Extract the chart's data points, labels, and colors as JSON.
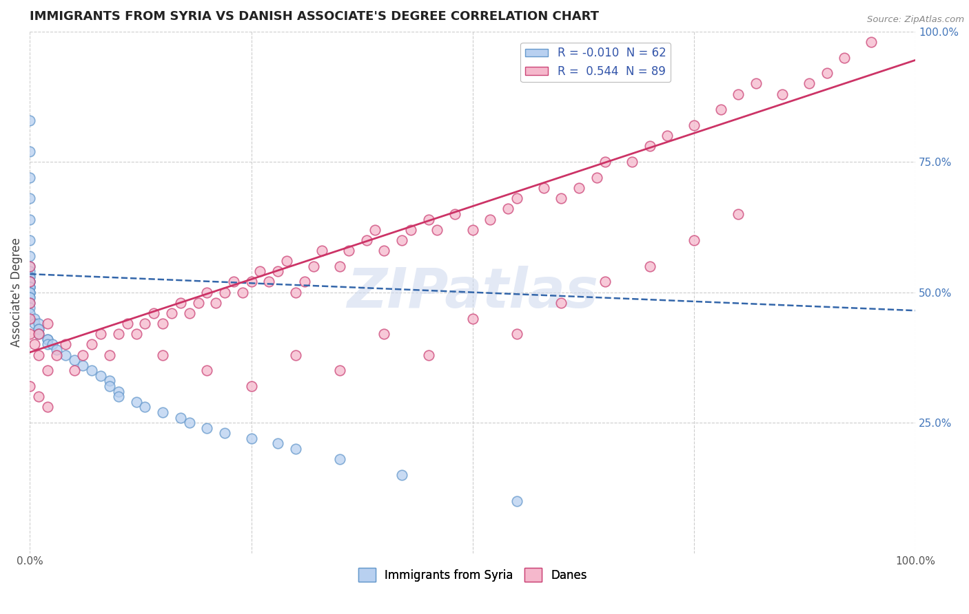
{
  "title": "IMMIGRANTS FROM SYRIA VS DANISH ASSOCIATE'S DEGREE CORRELATION CHART",
  "source": "Source: ZipAtlas.com",
  "ylabel": "Associate's Degree",
  "xmin": 0.0,
  "xmax": 1.0,
  "ymin": 0.0,
  "ymax": 1.0,
  "grid_color": "#cccccc",
  "background_color": "#ffffff",
  "legend_labels_bottom": [
    "Immigrants from Syria",
    "Danes"
  ],
  "blue_fill_color": "#b8d0f0",
  "pink_fill_color": "#f5b8cc",
  "blue_edge_color": "#6699cc",
  "pink_edge_color": "#cc4477",
  "blue_line_color": "#3366aa",
  "pink_line_color": "#cc3366",
  "watermark": "ZIPatlas",
  "legend_r_blue": "R = -0.010",
  "legend_n_blue": "N = 62",
  "legend_r_pink": "R =  0.544",
  "legend_n_pink": "N = 89",
  "blue_line_start_y": 0.535,
  "blue_line_end_y": 0.465,
  "pink_line_start_y": 0.385,
  "pink_line_end_y": 0.945,
  "blue_scatter_x": [
    0.0,
    0.0,
    0.0,
    0.0,
    0.0,
    0.0,
    0.0,
    0.0,
    0.0,
    0.0,
    0.0,
    0.0,
    0.0,
    0.0,
    0.0,
    0.0,
    0.0,
    0.0,
    0.0,
    0.0,
    0.0,
    0.0,
    0.0,
    0.0,
    0.0,
    0.0,
    0.0,
    0.0,
    0.0,
    0.005,
    0.005,
    0.01,
    0.01,
    0.01,
    0.01,
    0.02,
    0.02,
    0.02,
    0.025,
    0.03,
    0.04,
    0.05,
    0.06,
    0.07,
    0.08,
    0.09,
    0.09,
    0.1,
    0.1,
    0.12,
    0.13,
    0.15,
    0.17,
    0.18,
    0.2,
    0.22,
    0.25,
    0.28,
    0.3,
    0.35,
    0.42,
    0.55
  ],
  "blue_scatter_y": [
    0.83,
    0.77,
    0.72,
    0.68,
    0.64,
    0.6,
    0.57,
    0.55,
    0.54,
    0.53,
    0.53,
    0.52,
    0.52,
    0.52,
    0.52,
    0.52,
    0.51,
    0.51,
    0.51,
    0.51,
    0.5,
    0.5,
    0.5,
    0.5,
    0.49,
    0.49,
    0.48,
    0.47,
    0.46,
    0.45,
    0.44,
    0.44,
    0.43,
    0.43,
    0.42,
    0.41,
    0.41,
    0.4,
    0.4,
    0.39,
    0.38,
    0.37,
    0.36,
    0.35,
    0.34,
    0.33,
    0.32,
    0.31,
    0.3,
    0.29,
    0.28,
    0.27,
    0.26,
    0.25,
    0.24,
    0.23,
    0.22,
    0.21,
    0.2,
    0.18,
    0.15,
    0.1
  ],
  "pink_scatter_x": [
    0.0,
    0.0,
    0.0,
    0.0,
    0.0,
    0.005,
    0.01,
    0.01,
    0.02,
    0.02,
    0.03,
    0.04,
    0.05,
    0.06,
    0.07,
    0.08,
    0.09,
    0.1,
    0.11,
    0.12,
    0.13,
    0.14,
    0.15,
    0.16,
    0.17,
    0.18,
    0.19,
    0.2,
    0.21,
    0.22,
    0.23,
    0.24,
    0.25,
    0.26,
    0.27,
    0.28,
    0.29,
    0.3,
    0.31,
    0.32,
    0.33,
    0.35,
    0.36,
    0.38,
    0.39,
    0.4,
    0.42,
    0.43,
    0.45,
    0.46,
    0.48,
    0.5,
    0.52,
    0.54,
    0.55,
    0.58,
    0.6,
    0.62,
    0.64,
    0.65,
    0.68,
    0.7,
    0.72,
    0.75,
    0.78,
    0.8,
    0.82,
    0.85,
    0.88,
    0.9,
    0.92,
    0.95,
    0.0,
    0.01,
    0.02,
    0.15,
    0.2,
    0.25,
    0.3,
    0.35,
    0.4,
    0.45,
    0.5,
    0.55,
    0.6,
    0.65,
    0.7,
    0.75,
    0.8
  ],
  "pink_scatter_y": [
    0.55,
    0.52,
    0.48,
    0.45,
    0.42,
    0.4,
    0.38,
    0.42,
    0.44,
    0.35,
    0.38,
    0.4,
    0.35,
    0.38,
    0.4,
    0.42,
    0.38,
    0.42,
    0.44,
    0.42,
    0.44,
    0.46,
    0.44,
    0.46,
    0.48,
    0.46,
    0.48,
    0.5,
    0.48,
    0.5,
    0.52,
    0.5,
    0.52,
    0.54,
    0.52,
    0.54,
    0.56,
    0.5,
    0.52,
    0.55,
    0.58,
    0.55,
    0.58,
    0.6,
    0.62,
    0.58,
    0.6,
    0.62,
    0.64,
    0.62,
    0.65,
    0.62,
    0.64,
    0.66,
    0.68,
    0.7,
    0.68,
    0.7,
    0.72,
    0.75,
    0.75,
    0.78,
    0.8,
    0.82,
    0.85,
    0.88,
    0.9,
    0.88,
    0.9,
    0.92,
    0.95,
    0.98,
    0.32,
    0.3,
    0.28,
    0.38,
    0.35,
    0.32,
    0.38,
    0.35,
    0.42,
    0.38,
    0.45,
    0.42,
    0.48,
    0.52,
    0.55,
    0.6,
    0.65
  ]
}
